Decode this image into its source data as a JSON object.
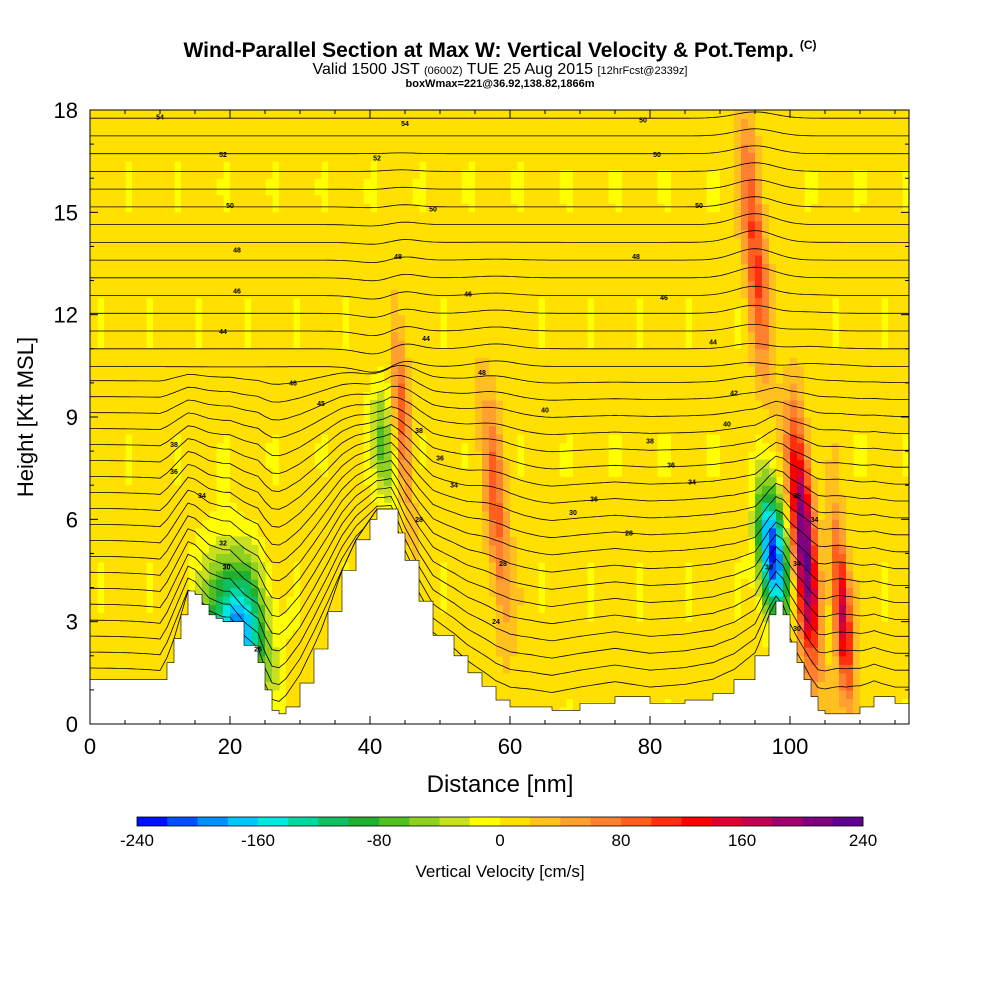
{
  "header": {
    "title": "Wind-Parallel Section at Max W: Vertical Velocity & Pot.Temp.",
    "copyright": "(C)",
    "valid_prefix": "Valid 1500 JST",
    "valid_zulu": "(0600Z)",
    "valid_date": "TUE 25 Aug 2015",
    "forecast": "[12hrFcst@2339z]",
    "boxwmax": "boxWmax=221@36.92,138.82,1866m"
  },
  "chart_data": {
    "type": "heatmap",
    "xlabel": "Distance [nm]",
    "ylabel": "Height [Kft MSL]",
    "xlim": [
      0,
      117
    ],
    "ylim": [
      0,
      18
    ],
    "x_ticks": [
      0,
      20,
      40,
      60,
      80,
      100
    ],
    "y_ticks": [
      0,
      3,
      6,
      9,
      12,
      15,
      18
    ],
    "x_tick_labels": [
      "0",
      "20",
      "40",
      "60",
      "80",
      "100"
    ],
    "y_tick_labels": [
      "0",
      "3",
      "6",
      "9",
      "12",
      "15",
      "18"
    ],
    "colorbar": {
      "label": "Vertical Velocity [cm/s]",
      "min": -240,
      "max": 240,
      "tick_values": [
        -240,
        -160,
        -80,
        0,
        80,
        160,
        240
      ],
      "tick_labels": [
        "-240",
        "-160",
        "-80",
        "0",
        "80",
        "160",
        "240"
      ],
      "colors": [
        "#0010ff",
        "#0050ff",
        "#0090ff",
        "#00c8ff",
        "#00e8e0",
        "#00d8a0",
        "#10c060",
        "#20b030",
        "#50c020",
        "#90d020",
        "#c8e020",
        "#ffff00",
        "#ffe000",
        "#ffc020",
        "#ffa030",
        "#ff8030",
        "#ff6020",
        "#ff3010",
        "#ff0000",
        "#e00030",
        "#c00050",
        "#a00070",
        "#800080",
        "#600090"
      ]
    },
    "terrain_profile": {
      "x": [
        0,
        10,
        11,
        12,
        13,
        14,
        15,
        16,
        17,
        18,
        19,
        20,
        22,
        24,
        25,
        26,
        27,
        28,
        30,
        32,
        34,
        36,
        38,
        40,
        41,
        42,
        43,
        44,
        45,
        47,
        49,
        52,
        54,
        56,
        58,
        60,
        63,
        66,
        70,
        75,
        80,
        85,
        89,
        92,
        95,
        97,
        98,
        99,
        100,
        101,
        102,
        103,
        104,
        105,
        106,
        107,
        108,
        110,
        112,
        115,
        117
      ],
      "y": [
        1.3,
        1.3,
        1.8,
        2.5,
        3.2,
        3.9,
        3.8,
        3.5,
        3.2,
        3.1,
        3.0,
        3.0,
        2.3,
        1.8,
        1.0,
        0.4,
        0.3,
        0.5,
        1.2,
        2.2,
        3.3,
        4.5,
        5.4,
        6.0,
        6.3,
        6.3,
        6.3,
        5.6,
        4.8,
        3.6,
        2.6,
        2.0,
        1.5,
        1.1,
        0.7,
        0.5,
        0.5,
        0.4,
        0.6,
        0.8,
        0.6,
        0.7,
        0.9,
        1.3,
        2.0,
        3.2,
        3.6,
        3.2,
        2.4,
        1.8,
        1.3,
        0.8,
        0.4,
        0.3,
        0.3,
        0.3,
        0.3,
        0.5,
        0.8,
        0.6,
        0.6
      ]
    },
    "features": [
      {
        "kind": "downdraft",
        "x": [
          16,
          26
        ],
        "height": [
          0.5,
          5.0
        ],
        "min_w": -200
      },
      {
        "kind": "downdraft",
        "x": [
          40,
          44
        ],
        "height": [
          6.3,
          10.0
        ],
        "min_w": -80
      },
      {
        "kind": "updraft",
        "x": [
          43,
          46
        ],
        "height": [
          6.0,
          12.5
        ],
        "max_w": 80
      },
      {
        "kind": "updraft",
        "x": [
          56,
          60
        ],
        "height": [
          2.5,
          10.0
        ],
        "max_w": 80
      },
      {
        "kind": "updraft",
        "x": [
          93,
          97
        ],
        "height": [
          10.0,
          18.0
        ],
        "max_w": 100
      },
      {
        "kind": "downdraft",
        "x": [
          95,
          100
        ],
        "height": [
          3.0,
          7.0
        ],
        "min_w": -240
      },
      {
        "kind": "updraft",
        "x": [
          100,
          104
        ],
        "height": [
          1.5,
          9.0
        ],
        "max_w": 221
      },
      {
        "kind": "updraft",
        "x": [
          106,
          109
        ],
        "height": [
          0.5,
          6.0
        ],
        "max_w": 160
      }
    ],
    "contour_labels": [
      {
        "text": "54",
        "x": 10,
        "y": 17.8
      },
      {
        "text": "54",
        "x": 45,
        "y": 17.6
      },
      {
        "text": "50",
        "x": 79,
        "y": 17.7
      },
      {
        "text": "52",
        "x": 19,
        "y": 16.7
      },
      {
        "text": "52",
        "x": 41,
        "y": 16.6
      },
      {
        "text": "50",
        "x": 81,
        "y": 16.7
      },
      {
        "text": "50",
        "x": 20,
        "y": 15.2
      },
      {
        "text": "50",
        "x": 49,
        "y": 15.1
      },
      {
        "text": "50",
        "x": 87,
        "y": 15.2
      },
      {
        "text": "48",
        "x": 21,
        "y": 13.9
      },
      {
        "text": "48",
        "x": 44,
        "y": 13.7
      },
      {
        "text": "48",
        "x": 78,
        "y": 13.7
      },
      {
        "text": "46",
        "x": 21,
        "y": 12.7
      },
      {
        "text": "46",
        "x": 54,
        "y": 12.6
      },
      {
        "text": "46",
        "x": 82,
        "y": 12.5
      },
      {
        "text": "44",
        "x": 19,
        "y": 11.5
      },
      {
        "text": "44",
        "x": 48,
        "y": 11.3
      },
      {
        "text": "44",
        "x": 89,
        "y": 11.2
      },
      {
        "text": "46",
        "x": 29,
        "y": 10.0
      },
      {
        "text": "48",
        "x": 56,
        "y": 10.3
      },
      {
        "text": "42",
        "x": 92,
        "y": 9.7
      },
      {
        "text": "45",
        "x": 33,
        "y": 9.4
      },
      {
        "text": "40",
        "x": 65,
        "y": 9.2
      },
      {
        "text": "40",
        "x": 91,
        "y": 8.8
      },
      {
        "text": "38",
        "x": 12,
        "y": 8.2
      },
      {
        "text": "38",
        "x": 47,
        "y": 8.6
      },
      {
        "text": "38",
        "x": 80,
        "y": 8.3
      },
      {
        "text": "36",
        "x": 12,
        "y": 7.4
      },
      {
        "text": "36",
        "x": 50,
        "y": 7.8
      },
      {
        "text": "36",
        "x": 83,
        "y": 7.6
      },
      {
        "text": "34",
        "x": 16,
        "y": 6.7
      },
      {
        "text": "34",
        "x": 52,
        "y": 7.0
      },
      {
        "text": "34",
        "x": 86,
        "y": 7.1
      },
      {
        "text": "36",
        "x": 72,
        "y": 6.6
      },
      {
        "text": "30",
        "x": 69,
        "y": 6.2
      },
      {
        "text": "36",
        "x": 101,
        "y": 6.7
      },
      {
        "text": "34",
        "x": 103.5,
        "y": 6.0
      },
      {
        "text": "28",
        "x": 47,
        "y": 6.0
      },
      {
        "text": "28",
        "x": 77,
        "y": 5.6
      },
      {
        "text": "32",
        "x": 19,
        "y": 5.3
      },
      {
        "text": "30",
        "x": 19.5,
        "y": 4.6
      },
      {
        "text": "28",
        "x": 59,
        "y": 4.7
      },
      {
        "text": "30",
        "x": 97,
        "y": 4.6
      },
      {
        "text": "34",
        "x": 101,
        "y": 4.7
      },
      {
        "text": "26",
        "x": 24,
        "y": 2.2
      },
      {
        "text": "24",
        "x": 58,
        "y": 3.0
      },
      {
        "text": "30",
        "x": 101,
        "y": 2.8
      }
    ]
  }
}
